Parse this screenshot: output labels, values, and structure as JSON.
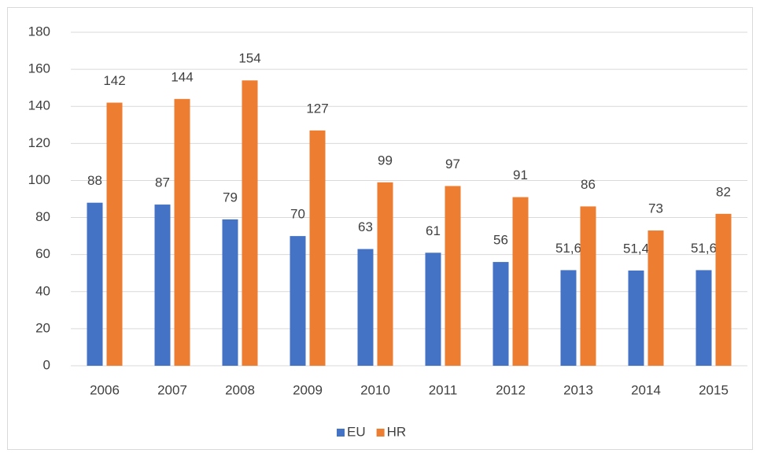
{
  "chart_data": {
    "type": "bar",
    "categories": [
      "2006",
      "2007",
      "2008",
      "2009",
      "2010",
      "2011",
      "2012",
      "2013",
      "2014",
      "2015"
    ],
    "series": [
      {
        "name": "EU",
        "color": "#4472c4",
        "values": [
          88,
          87,
          79,
          70,
          63,
          61,
          56,
          51.6,
          51.4,
          51.6
        ],
        "value_labels": [
          "88",
          "87",
          "79",
          "70",
          "63",
          "61",
          "56",
          "51,6",
          "51,4",
          "51,6"
        ]
      },
      {
        "name": "HR",
        "color": "#ed7d31",
        "values": [
          142,
          144,
          154,
          127,
          99,
          97,
          91,
          86,
          73,
          82
        ]
      }
    ],
    "ylim": [
      0,
      180
    ],
    "yticks": [
      0,
      20,
      40,
      60,
      80,
      100,
      120,
      140,
      160,
      180
    ],
    "grid": true,
    "legend": "bottom"
  }
}
